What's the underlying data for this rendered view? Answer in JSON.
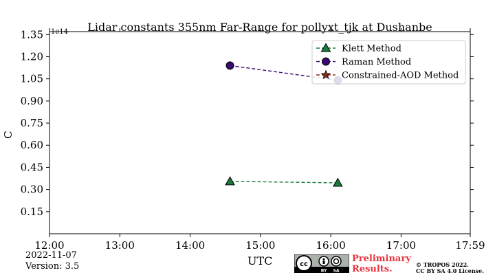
{
  "chart_data": {
    "type": "line",
    "title": "Lidar constants 355nm Far-Range for pollyxt_tjk at Dushanbe",
    "xlabel": "UTC",
    "ylabel": "C",
    "y_offset_label": "1e14",
    "x_ticks": [
      "12:00",
      "13:00",
      "14:00",
      "15:00",
      "16:00",
      "17:00",
      "17:59"
    ],
    "y_ticks": [
      "0.15",
      "0.30",
      "0.45",
      "0.60",
      "0.75",
      "0.90",
      "1.05",
      "1.20",
      "1.35"
    ],
    "xlim": [
      "12:00",
      "17:59"
    ],
    "ylim": [
      0,
      1.37
    ],
    "grid": false,
    "legend_position": "top-right",
    "series": [
      {
        "name": "Klett Method",
        "x": [
          "14:34",
          "16:06"
        ],
        "y": [
          0.355,
          0.345
        ],
        "color": "#1a7a3c",
        "marker": "triangle",
        "linestyle": "dashed"
      },
      {
        "name": "Raman Method",
        "x": [
          "14:34",
          "16:06"
        ],
        "y": [
          1.14,
          1.04
        ],
        "color": "#3a0a6e",
        "marker": "circle",
        "linestyle": "dashed"
      },
      {
        "name": "Constrained-AOD Method",
        "x": [],
        "y": [],
        "color": "#8b2a1a",
        "marker": "star",
        "linestyle": "dashed"
      }
    ]
  },
  "footer": {
    "date": "2022-11-07",
    "version": "Version: 3.5",
    "preliminary": "Preliminary\nResults.",
    "copyright_line1": "© TROPOS 2022.",
    "copyright_line2": "CC BY SA 4.0 License."
  }
}
